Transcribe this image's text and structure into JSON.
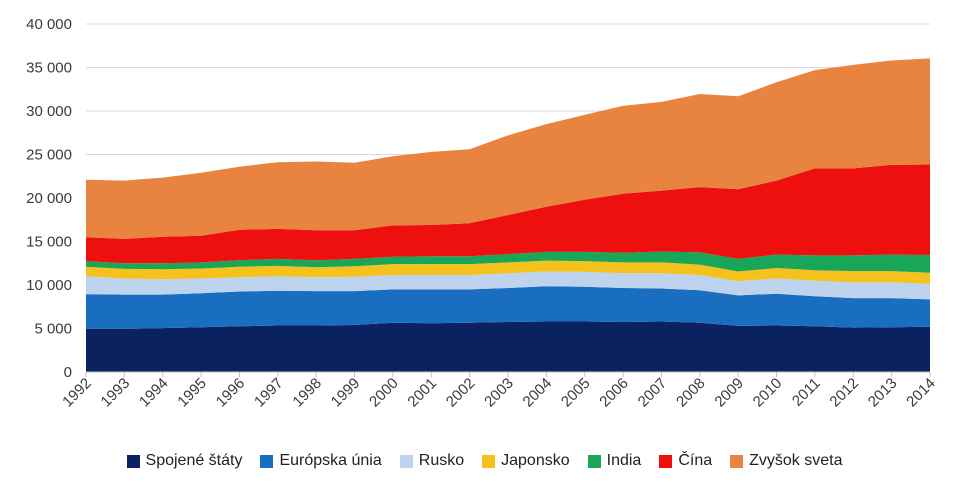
{
  "chart_data": {
    "type": "area",
    "stacked": true,
    "title": "",
    "xlabel": "",
    "ylabel": "",
    "ylim": [
      0,
      40000
    ],
    "yticks": [
      0,
      5000,
      10000,
      15000,
      20000,
      25000,
      30000,
      35000,
      40000
    ],
    "ytick_labels": [
      "0",
      "5 000",
      "10 000",
      "15 000",
      "20 000",
      "25 000",
      "30 000",
      "35 000",
      "40 000"
    ],
    "grid": "horizontal",
    "legend_position": "bottom",
    "x": [
      "1992",
      "1993",
      "1994",
      "1995",
      "1996",
      "1997",
      "1998",
      "1999",
      "2000",
      "2001",
      "2002",
      "2003",
      "2004",
      "2005",
      "2006",
      "2007",
      "2008",
      "2009",
      "2010",
      "2011",
      "2012",
      "2013",
      "2014"
    ],
    "series": [
      {
        "name": "Spojené štáty",
        "color": "#0b2260",
        "values": [
          4950,
          4950,
          5050,
          5150,
          5250,
          5350,
          5350,
          5400,
          5650,
          5600,
          5650,
          5750,
          5800,
          5800,
          5750,
          5800,
          5650,
          5300,
          5350,
          5250,
          5100,
          5150,
          5200
        ]
      },
      {
        "name": "Európska únia",
        "color": "#1a6ec0",
        "values": [
          4000,
          3950,
          3850,
          3900,
          4000,
          4000,
          3950,
          3900,
          3850,
          3900,
          3850,
          3900,
          4050,
          4000,
          3900,
          3800,
          3750,
          3500,
          3650,
          3450,
          3400,
          3350,
          3150
        ]
      },
      {
        "name": "Rusko",
        "color": "#bdd3ee",
        "values": [
          2050,
          1850,
          1750,
          1700,
          1650,
          1650,
          1600,
          1650,
          1650,
          1650,
          1650,
          1700,
          1700,
          1700,
          1700,
          1750,
          1750,
          1650,
          1750,
          1800,
          1800,
          1800,
          1800
        ]
      },
      {
        "name": "Japonsko",
        "color": "#f5c11c",
        "values": [
          1100,
          1100,
          1150,
          1150,
          1200,
          1200,
          1150,
          1200,
          1250,
          1250,
          1250,
          1250,
          1250,
          1250,
          1250,
          1250,
          1200,
          1100,
          1200,
          1200,
          1300,
          1300,
          1250
        ]
      },
      {
        "name": "India",
        "color": "#1aa658",
        "values": [
          650,
          650,
          700,
          700,
          750,
          800,
          800,
          850,
          850,
          900,
          900,
          950,
          1000,
          1050,
          1100,
          1250,
          1400,
          1450,
          1550,
          1700,
          1800,
          1900,
          2050
        ]
      },
      {
        "name": "Čína",
        "color": "#ee0f0f",
        "values": [
          2750,
          2800,
          3050,
          3050,
          3500,
          3450,
          3450,
          3300,
          3600,
          3600,
          3800,
          4500,
          5200,
          6000,
          6800,
          7000,
          7500,
          8000,
          8500,
          10000,
          10000,
          10300,
          10400
        ]
      },
      {
        "name": "Zvyšok sveta",
        "color": "#e8843f",
        "values": [
          6600,
          6700,
          6800,
          7250,
          7250,
          7650,
          7900,
          7750,
          7950,
          8400,
          8500,
          9150,
          9500,
          9750,
          10100,
          10200,
          10700,
          10700,
          11300,
          11300,
          11900,
          12000,
          12200
        ]
      }
    ]
  }
}
